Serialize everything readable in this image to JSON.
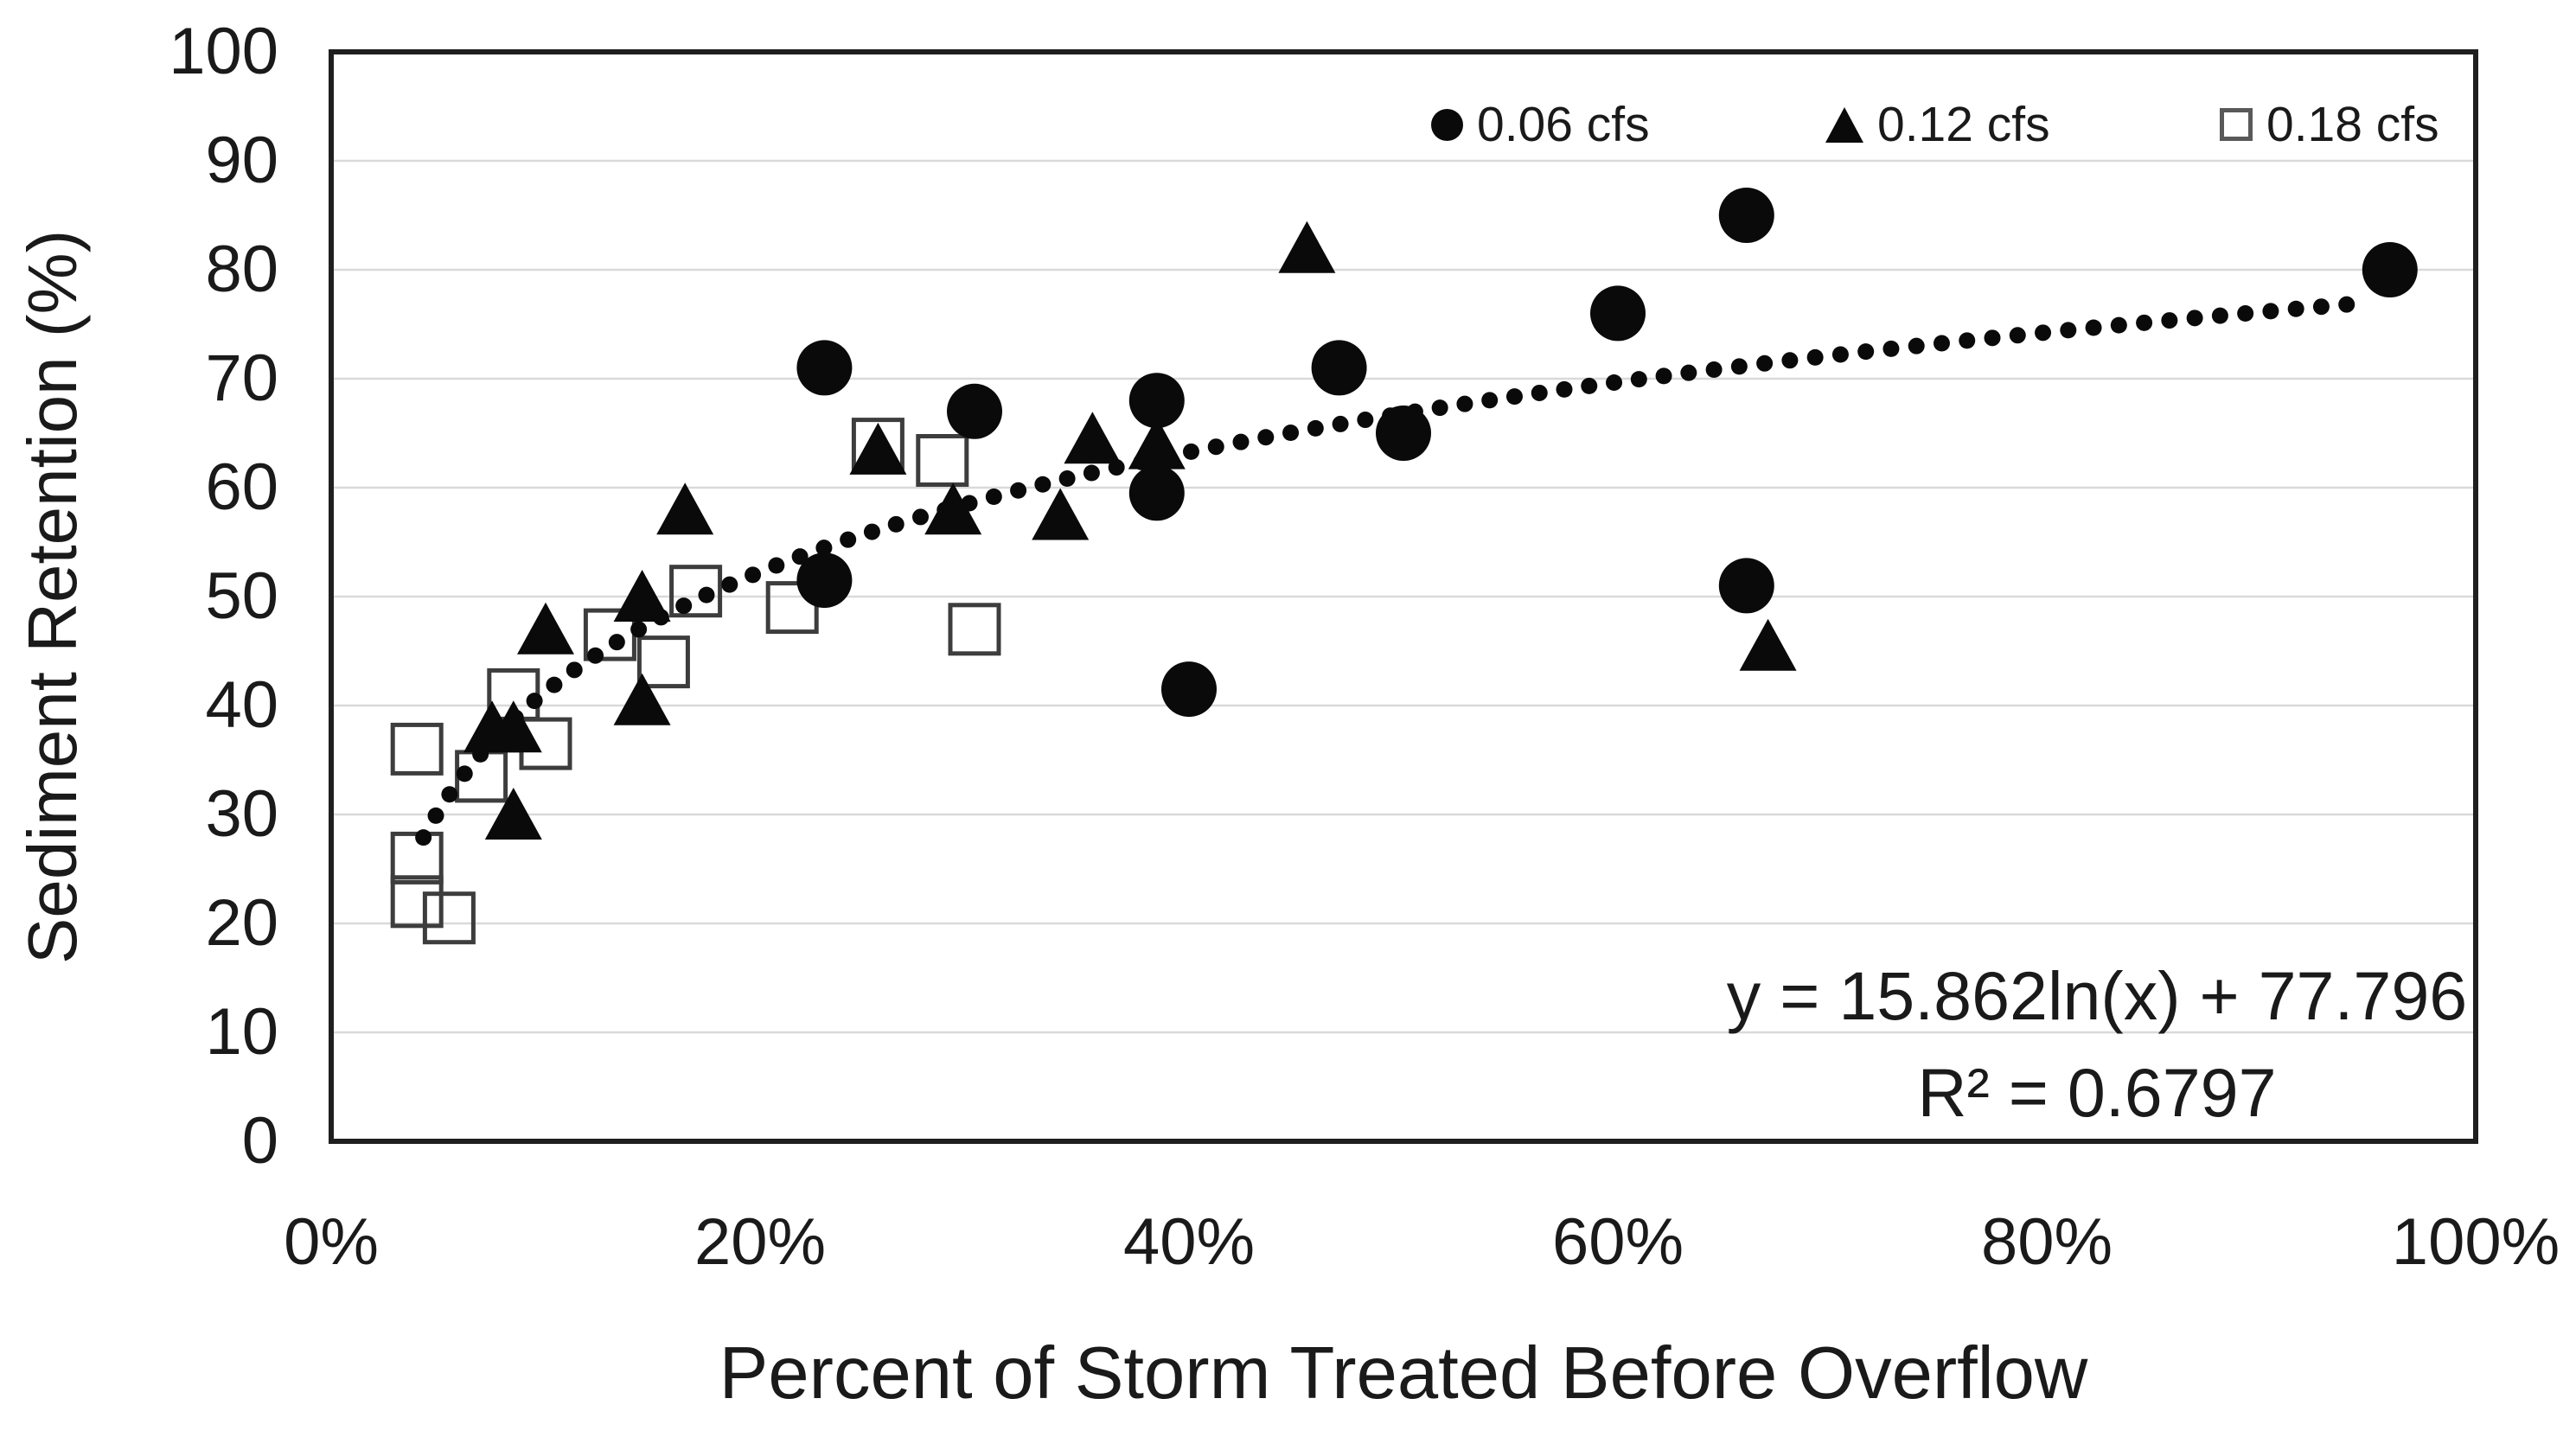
{
  "chart_data": {
    "type": "scatter",
    "title": "",
    "xlabel": "Percent of Storm Treated Before Overflow",
    "ylabel": "Sediment Retention (%)",
    "xlim": [
      0,
      100
    ],
    "ylim": [
      0,
      100
    ],
    "x_ticks": [
      "0%",
      "20%",
      "40%",
      "60%",
      "80%",
      "100%"
    ],
    "x_tick_values": [
      0,
      20,
      40,
      60,
      80,
      100
    ],
    "y_ticks": [
      "0",
      "10",
      "20",
      "30",
      "40",
      "50",
      "60",
      "70",
      "80",
      "90",
      "100"
    ],
    "y_tick_values": [
      0,
      10,
      20,
      30,
      40,
      50,
      60,
      70,
      80,
      90,
      100
    ],
    "grid": "horizontal",
    "legend_position": "top-right-inside",
    "series": [
      {
        "name": "0.06 cfs",
        "marker": "filled-circle",
        "points": [
          [
            23,
            51.5
          ],
          [
            23,
            71
          ],
          [
            30,
            67
          ],
          [
            38.5,
            68
          ],
          [
            38.5,
            59.5
          ],
          [
            40,
            41.5
          ],
          [
            47,
            71
          ],
          [
            50,
            65
          ],
          [
            60,
            76
          ],
          [
            66,
            85
          ],
          [
            66,
            51
          ],
          [
            96,
            80
          ]
        ]
      },
      {
        "name": "0.12 cfs",
        "marker": "filled-triangle",
        "points": [
          [
            7.5,
            38
          ],
          [
            8.5,
            38
          ],
          [
            8.5,
            30
          ],
          [
            10,
            47
          ],
          [
            14.5,
            50
          ],
          [
            14.5,
            40.5
          ],
          [
            16.5,
            58
          ],
          [
            25.5,
            63.5
          ],
          [
            29,
            58
          ],
          [
            34,
            57.5
          ],
          [
            35.5,
            64.5
          ],
          [
            38.5,
            64
          ],
          [
            45.5,
            82
          ],
          [
            67,
            45.5
          ]
        ]
      },
      {
        "name": "0.18 cfs",
        "marker": "open-square",
        "points": [
          [
            4,
            36
          ],
          [
            4,
            26
          ],
          [
            4,
            22
          ],
          [
            5.5,
            20.5
          ],
          [
            7,
            33.5
          ],
          [
            8.5,
            41
          ],
          [
            10,
            36.5
          ],
          [
            13,
            46.5
          ],
          [
            15.5,
            44
          ],
          [
            17,
            50.5
          ],
          [
            21.5,
            49
          ],
          [
            25.5,
            64
          ],
          [
            28.5,
            62.5
          ],
          [
            30,
            47
          ]
        ]
      }
    ],
    "trendline": {
      "type": "logarithmic",
      "style": "dotted",
      "coef_a": 15.862,
      "coef_b": 77.796,
      "x_start_pct": 4.3,
      "x_end_pct": 94.5,
      "equation": "y = 15.862ln(x) + 77.796",
      "r_squared": "R² = 0.6797"
    },
    "colors": {
      "marker": "#0a0a0a",
      "frame": "#1f1f1f",
      "gridline": "#d9d9d9",
      "square_stroke": "#3d3d3d",
      "background": "#ffffff"
    }
  }
}
